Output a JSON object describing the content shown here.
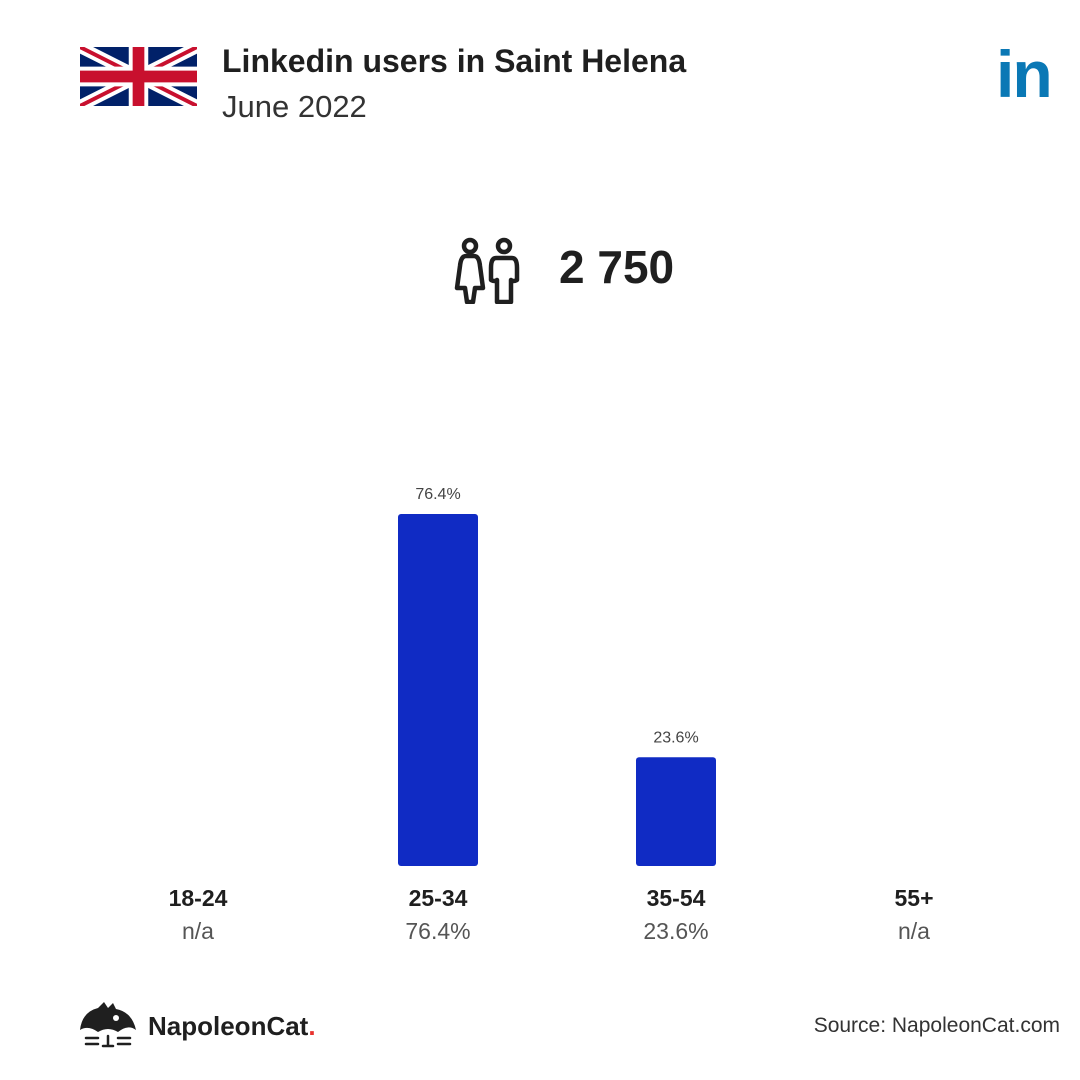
{
  "header": {
    "title": "Linkedin users in Saint Helena",
    "subtitle": "June 2022",
    "logo_text": "in"
  },
  "total": {
    "icon": "people-icon",
    "value": "2 750"
  },
  "chart_data": {
    "type": "bar",
    "categories": [
      "18-24",
      "25-34",
      "35-54",
      "55+"
    ],
    "values": [
      null,
      76.4,
      23.6,
      null
    ],
    "data_labels": [
      "",
      "76.4%",
      "23.6%",
      ""
    ],
    "value_labels": [
      "n/a",
      "76.4%",
      "23.6%",
      "n/a"
    ],
    "ylim": [
      0,
      76.4
    ],
    "grid": false,
    "bar_color": "#102bc4"
  },
  "footer": {
    "brand": "NapoleonCat",
    "brand_dot": ".",
    "source": "Source: NapoleonCat.com"
  },
  "colors": {
    "linkedin": "#0a78b5",
    "bar": "#102bc4",
    "brand_dot": "#e8322e"
  }
}
